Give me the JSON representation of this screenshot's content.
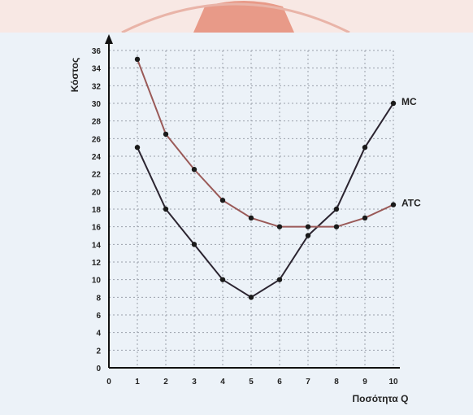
{
  "chart_data": {
    "type": "line",
    "title": "",
    "xlabel": "Ποσότητα Q",
    "ylabel": "Κόστος",
    "xlim": [
      0,
      10
    ],
    "ylim": [
      0,
      36
    ],
    "x_ticks": [
      0,
      1,
      2,
      3,
      4,
      5,
      6,
      7,
      8,
      9,
      10
    ],
    "y_ticks": [
      0,
      2,
      4,
      6,
      8,
      10,
      12,
      14,
      16,
      18,
      20,
      22,
      24,
      26,
      28,
      30,
      32,
      34,
      36
    ],
    "grid": true,
    "legend": "inline labels at right end of each curve",
    "series": [
      {
        "name": "MC",
        "color": "#2b2430",
        "x": [
          1,
          2,
          3,
          4,
          5,
          6,
          7,
          8,
          9,
          10
        ],
        "y": [
          25,
          18,
          14,
          10,
          8,
          10,
          15,
          18,
          25,
          30
        ]
      },
      {
        "name": "ATC",
        "color": "#9a5a58",
        "x": [
          1,
          2,
          3,
          4,
          5,
          6,
          7,
          8,
          9,
          10
        ],
        "y": [
          35,
          26.5,
          22.5,
          19,
          17,
          16,
          16,
          16,
          17,
          18.5
        ]
      }
    ]
  }
}
